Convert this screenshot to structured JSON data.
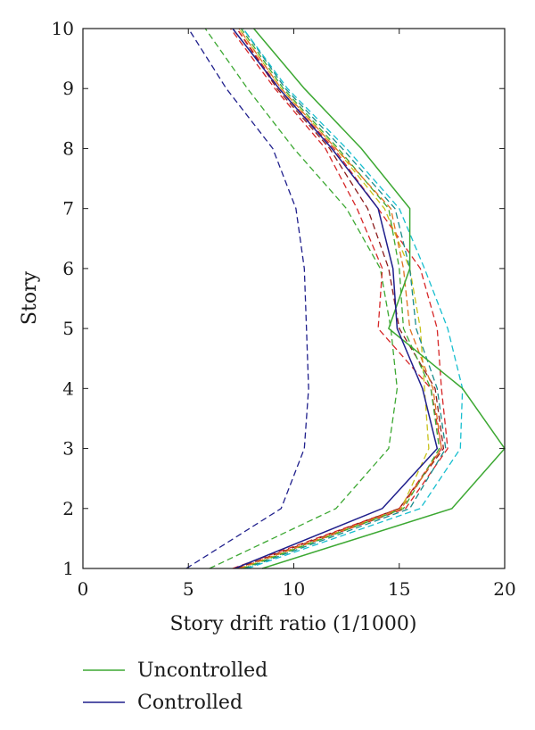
{
  "chart_data": {
    "type": "line",
    "xlabel": "Story drift ratio (1/1000)",
    "ylabel": "Story",
    "xlim": [
      0,
      20
    ],
    "ylim": [
      1,
      10
    ],
    "xticks": [
      "0",
      "5",
      "10",
      "15",
      "20"
    ],
    "yticks": [
      "1",
      "2",
      "3",
      "4",
      "5",
      "6",
      "7",
      "8",
      "9",
      "10"
    ],
    "grid": false,
    "legend_position": "below plot",
    "legend": [
      {
        "label": "Uncontrolled",
        "color": "#3ca832",
        "style": "solid"
      },
      {
        "label": "Controlled",
        "color": "#1f1f8c",
        "style": "solid"
      }
    ],
    "y": [
      1,
      2,
      3,
      4,
      5,
      6,
      7,
      8,
      9,
      10
    ],
    "series": [
      {
        "name": "Uncontrolled",
        "color": "#3ca832",
        "style": "solid",
        "x": [
          8.5,
          17.5,
          20.0,
          18.0,
          14.5,
          15.5,
          15.5,
          13.2,
          10.5,
          8.1
        ]
      },
      {
        "name": "Controlled",
        "color": "#1f1f8c",
        "style": "solid",
        "x": [
          7.2,
          14.2,
          16.8,
          16.1,
          14.9,
          14.7,
          14.0,
          11.8,
          9.3,
          7.1
        ]
      },
      {
        "color": "#1f1f8c",
        "style": "dashed",
        "x": [
          4.9,
          9.4,
          10.5,
          10.7,
          10.6,
          10.5,
          10.1,
          9.0,
          6.8,
          5.0
        ]
      },
      {
        "color": "#3ca832",
        "style": "dashed",
        "x": [
          6.0,
          12.0,
          14.5,
          14.9,
          14.6,
          14.1,
          12.5,
          10.0,
          7.8,
          5.8
        ]
      },
      {
        "color": "#d62728",
        "style": "dashed",
        "x": [
          7.1,
          15.0,
          17.0,
          16.5,
          14.0,
          14.2,
          13.0,
          11.5,
          9.1,
          7.0
        ]
      },
      {
        "color": "#8c1c1c",
        "style": "dashed",
        "x": [
          7.3,
          15.0,
          17.1,
          16.7,
          15.0,
          14.5,
          13.5,
          11.7,
          9.2,
          7.3
        ]
      },
      {
        "color": "#d62728",
        "style": "dashed",
        "x": [
          7.4,
          15.3,
          17.3,
          17.0,
          16.8,
          16.0,
          14.0,
          11.9,
          9.3,
          7.3
        ]
      },
      {
        "color": "#c8c21a",
        "style": "dashed",
        "x": [
          7.5,
          15.1,
          16.4,
          16.2,
          16.0,
          15.5,
          14.3,
          12.0,
          9.4,
          7.4
        ]
      },
      {
        "color": "#3ca832",
        "style": "dashed",
        "x": [
          7.6,
          15.2,
          16.9,
          16.5,
          15.2,
          15.0,
          14.5,
          12.1,
          9.5,
          7.5
        ]
      },
      {
        "color": "#1a8c8c",
        "style": "dashed",
        "x": [
          7.7,
          15.5,
          17.2,
          16.8,
          15.8,
          15.5,
          14.8,
          12.3,
          9.6,
          7.6
        ]
      },
      {
        "color": "#17becf",
        "style": "dashed",
        "x": [
          7.8,
          16.0,
          17.9,
          18.0,
          17.3,
          16.2,
          15.0,
          12.5,
          9.7,
          7.6
        ]
      },
      {
        "color": "#e07020",
        "style": "dashed",
        "x": [
          7.4,
          15.1,
          17.0,
          16.6,
          15.5,
          15.2,
          14.6,
          12.0,
          9.4,
          7.4
        ]
      }
    ]
  }
}
